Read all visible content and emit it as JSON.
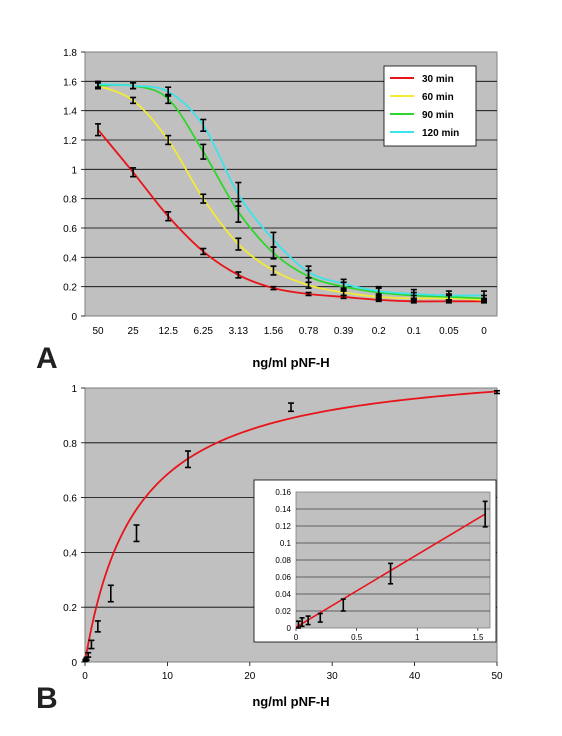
{
  "chart_data": [
    {
      "type": "line",
      "panel_label": "A",
      "xlabel": "ng/ml pNF-H",
      "categories": [
        "50",
        "25",
        "12.5",
        "6.25",
        "3.13",
        "1.56",
        "0.78",
        "0.39",
        "0.2",
        "0.1",
        "0.05",
        "0"
      ],
      "ylim": [
        0,
        1.8
      ],
      "yticks": [
        "0",
        "0.2",
        "0.4",
        "0.6",
        "0.8",
        "1",
        "1.2",
        "1.4",
        "1.6",
        "1.8"
      ],
      "grid": true,
      "legend_position": "top-right",
      "series": [
        {
          "name": "30 min",
          "color": "#e8141a",
          "values": [
            1.27,
            0.98,
            0.68,
            0.44,
            0.28,
            0.19,
            0.15,
            0.13,
            0.11,
            0.1,
            0.1,
            0.1
          ],
          "errors": [
            0.04,
            0.03,
            0.03,
            0.02,
            0.02,
            0.01,
            0.01,
            0.01,
            0.01,
            0.01,
            0.01,
            0.01
          ]
        },
        {
          "name": "60 min",
          "color": "#f2ea36",
          "values": [
            1.57,
            1.47,
            1.2,
            0.8,
            0.49,
            0.31,
            0.21,
            0.16,
            0.13,
            0.12,
            0.12,
            0.11
          ],
          "errors": [
            0.02,
            0.02,
            0.03,
            0.03,
            0.04,
            0.03,
            0.02,
            0.02,
            0.02,
            0.02,
            0.02,
            0.01
          ]
        },
        {
          "name": "90 min",
          "color": "#2fd62f",
          "values": [
            1.57,
            1.57,
            1.48,
            1.12,
            0.71,
            0.43,
            0.27,
            0.2,
            0.16,
            0.14,
            0.13,
            0.12
          ],
          "errors": [
            0.02,
            0.02,
            0.03,
            0.05,
            0.07,
            0.04,
            0.04,
            0.03,
            0.03,
            0.02,
            0.02,
            0.02
          ]
        },
        {
          "name": "120 min",
          "color": "#3de3ea",
          "values": [
            1.58,
            1.57,
            1.53,
            1.3,
            0.83,
            0.52,
            0.3,
            0.22,
            0.17,
            0.15,
            0.14,
            0.14
          ],
          "errors": [
            0.02,
            0.02,
            0.03,
            0.04,
            0.08,
            0.05,
            0.04,
            0.03,
            0.03,
            0.03,
            0.03,
            0.03
          ]
        }
      ]
    },
    {
      "type": "line",
      "panel_label": "B",
      "xlabel": "ng/ml pNF-H",
      "xlim": [
        0,
        50
      ],
      "xticks": [
        0,
        10,
        20,
        30,
        40,
        50
      ],
      "ylim": [
        0,
        1
      ],
      "yticks": [
        "0",
        "0.2",
        "0.4",
        "0.6",
        "0.8",
        "1"
      ],
      "grid": true,
      "series": [
        {
          "name": "",
          "color": "#e8141a",
          "x": [
            0.05,
            0.1,
            0.2,
            0.39,
            0.78,
            1.56,
            3.13,
            6.25,
            12.5,
            25,
            50
          ],
          "y": [
            0.005,
            0.008,
            0.012,
            0.026,
            0.064,
            0.13,
            0.25,
            0.47,
            0.74,
            0.93,
            0.985
          ],
          "errors": [
            0.003,
            0.003,
            0.005,
            0.008,
            0.015,
            0.02,
            0.03,
            0.03,
            0.03,
            0.015,
            0.005
          ]
        }
      ]
    },
    {
      "type": "line",
      "panel_label": "B inset",
      "xlim": [
        0,
        1.6
      ],
      "xticks": [
        "0",
        "0.5",
        "1",
        "1.5"
      ],
      "ylim": [
        0,
        0.16
      ],
      "yticks": [
        "0",
        "0.02",
        "0.04",
        "0.06",
        "0.08",
        "0.1",
        "0.12",
        "0.14",
        "0.16"
      ],
      "grid": true,
      "series": [
        {
          "name": "",
          "color": "#e8141a",
          "x": [
            0.02,
            0.05,
            0.1,
            0.2,
            0.39,
            0.78,
            1.56
          ],
          "y": [
            0.004,
            0.007,
            0.009,
            0.012,
            0.027,
            0.064,
            0.134
          ],
          "errors": [
            0.004,
            0.005,
            0.005,
            0.005,
            0.007,
            0.012,
            0.015
          ]
        }
      ]
    }
  ]
}
